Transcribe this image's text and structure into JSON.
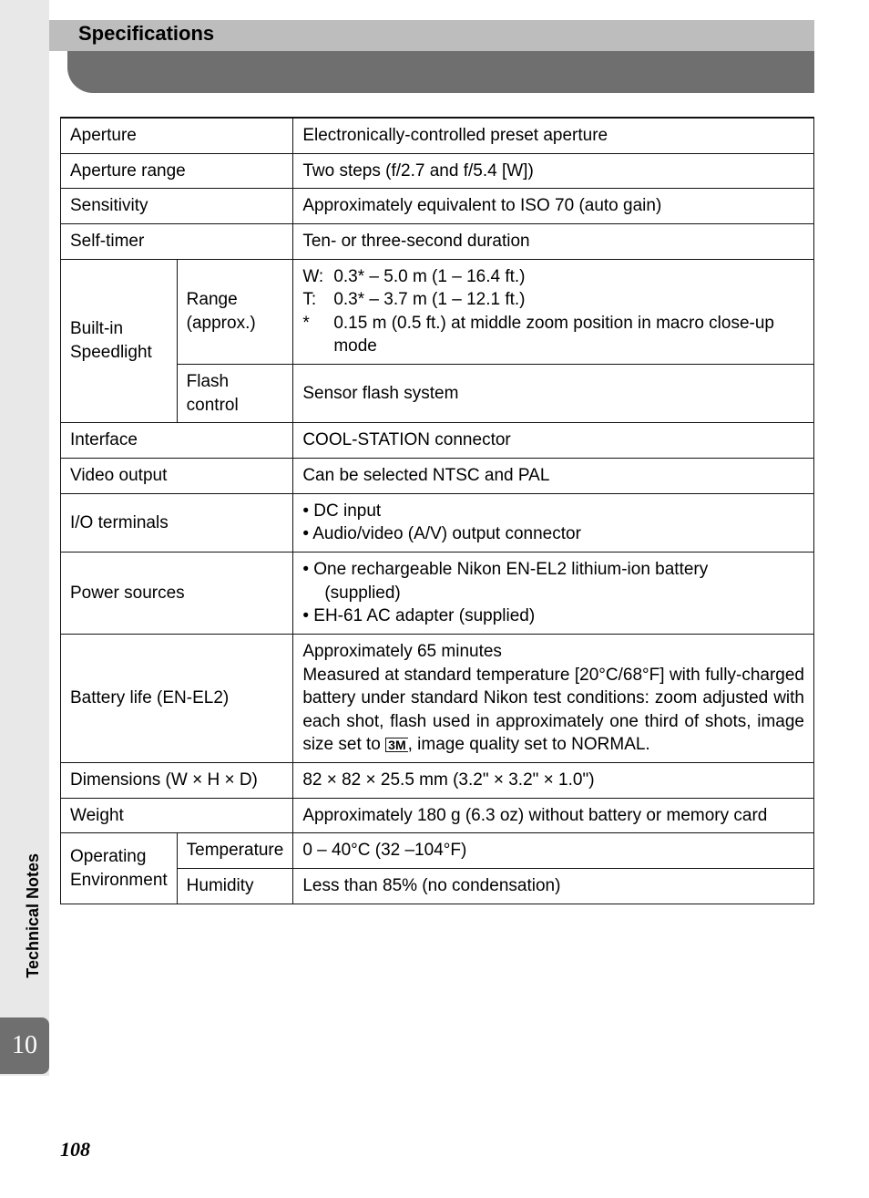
{
  "header": {
    "title": "Specifications"
  },
  "rows": {
    "aperture": {
      "label": "Aperture",
      "value": "Electronically-controlled preset aperture"
    },
    "aperture_range": {
      "label": "Aperture range",
      "value": "Two steps (f/2.7 and f/5.4 [W])"
    },
    "sensitivity": {
      "label": "Sensitivity",
      "value": "Approximately equivalent to ISO 70 (auto gain)"
    },
    "self_timer": {
      "label": "Self-timer",
      "value": "Ten- or three-second duration"
    },
    "speedlight": {
      "group_label": "Built-in Speedlight",
      "range": {
        "label": "Range (approx.)",
        "line1_pre": "W:",
        "line1": "0.3* – 5.0 m (1 – 16.4 ft.)",
        "line2_pre": "T:",
        "line2": "0.3* – 3.7 m (1 – 12.1 ft.)",
        "note_pre": "*",
        "note": "0.15 m (0.5 ft.) at middle zoom position in macro close-up mode"
      },
      "flash_control": {
        "label": "Flash control",
        "value": "Sensor flash system"
      }
    },
    "interface": {
      "label": "Interface",
      "value": "COOL-STATION connector"
    },
    "video_output": {
      "label": "Video output",
      "value": "Can be selected NTSC and PAL"
    },
    "io_terminals": {
      "label": "I/O terminals",
      "b1": "DC input",
      "b2": "Audio/video (A/V) output connector"
    },
    "power": {
      "label": "Power sources",
      "b1a": "One rechargeable Nikon EN-EL2 lithium-ion battery",
      "b1b": "(supplied)",
      "b2": "EH-61 AC adapter (supplied)"
    },
    "battery": {
      "label": "Battery life (EN-EL2)",
      "line1": "Approximately 65 minutes",
      "line2a": "Measured at standard temperature [20°C/68°F] with fully-charged battery under standard Nikon test conditions: zoom adjusted with each shot, flash used in approximately one third of shots, image size set to ",
      "icon": "3M",
      "line2b": ", image quality set to NORMAL."
    },
    "dimensions": {
      "label": "Dimensions (W × H × D)",
      "value": "82 × 82 × 25.5 mm (3.2\" × 3.2\" × 1.0\")"
    },
    "weight": {
      "label": "Weight",
      "value": "Approximately 180 g (6.3 oz) without battery or memory card"
    },
    "env": {
      "group_label": "Operating Environment",
      "temp": {
        "label": "Temperature",
        "value": "0 – 40°C (32 –104°F)"
      },
      "humidity": {
        "label": "Humidity",
        "value": "Less than 85% (no condensation)"
      }
    }
  },
  "side": {
    "label": "Technical Notes",
    "tab": "10",
    "page": "108"
  }
}
